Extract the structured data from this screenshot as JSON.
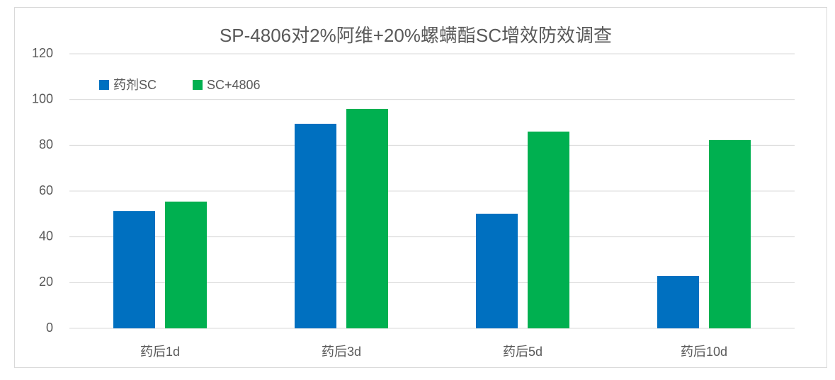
{
  "chart_data": {
    "type": "bar",
    "title": "SP-4806对2%阿维+20%螺螨酯SC增效防效调查",
    "categories": [
      "药后1d",
      "药后3d",
      "药后5d",
      "药后10d"
    ],
    "series": [
      {
        "name": "药剂SC",
        "color": "#0070c0",
        "values": [
          51.3,
          89.4,
          50.1,
          22.9
        ]
      },
      {
        "name": "SC+4806",
        "color": "#00b050",
        "values": [
          55.4,
          95.9,
          86.0,
          82.3
        ]
      }
    ],
    "ylim": [
      0,
      120
    ],
    "yticks": [
      0,
      20,
      40,
      60,
      80,
      100,
      120
    ],
    "grid": true,
    "legend": "top-left"
  }
}
